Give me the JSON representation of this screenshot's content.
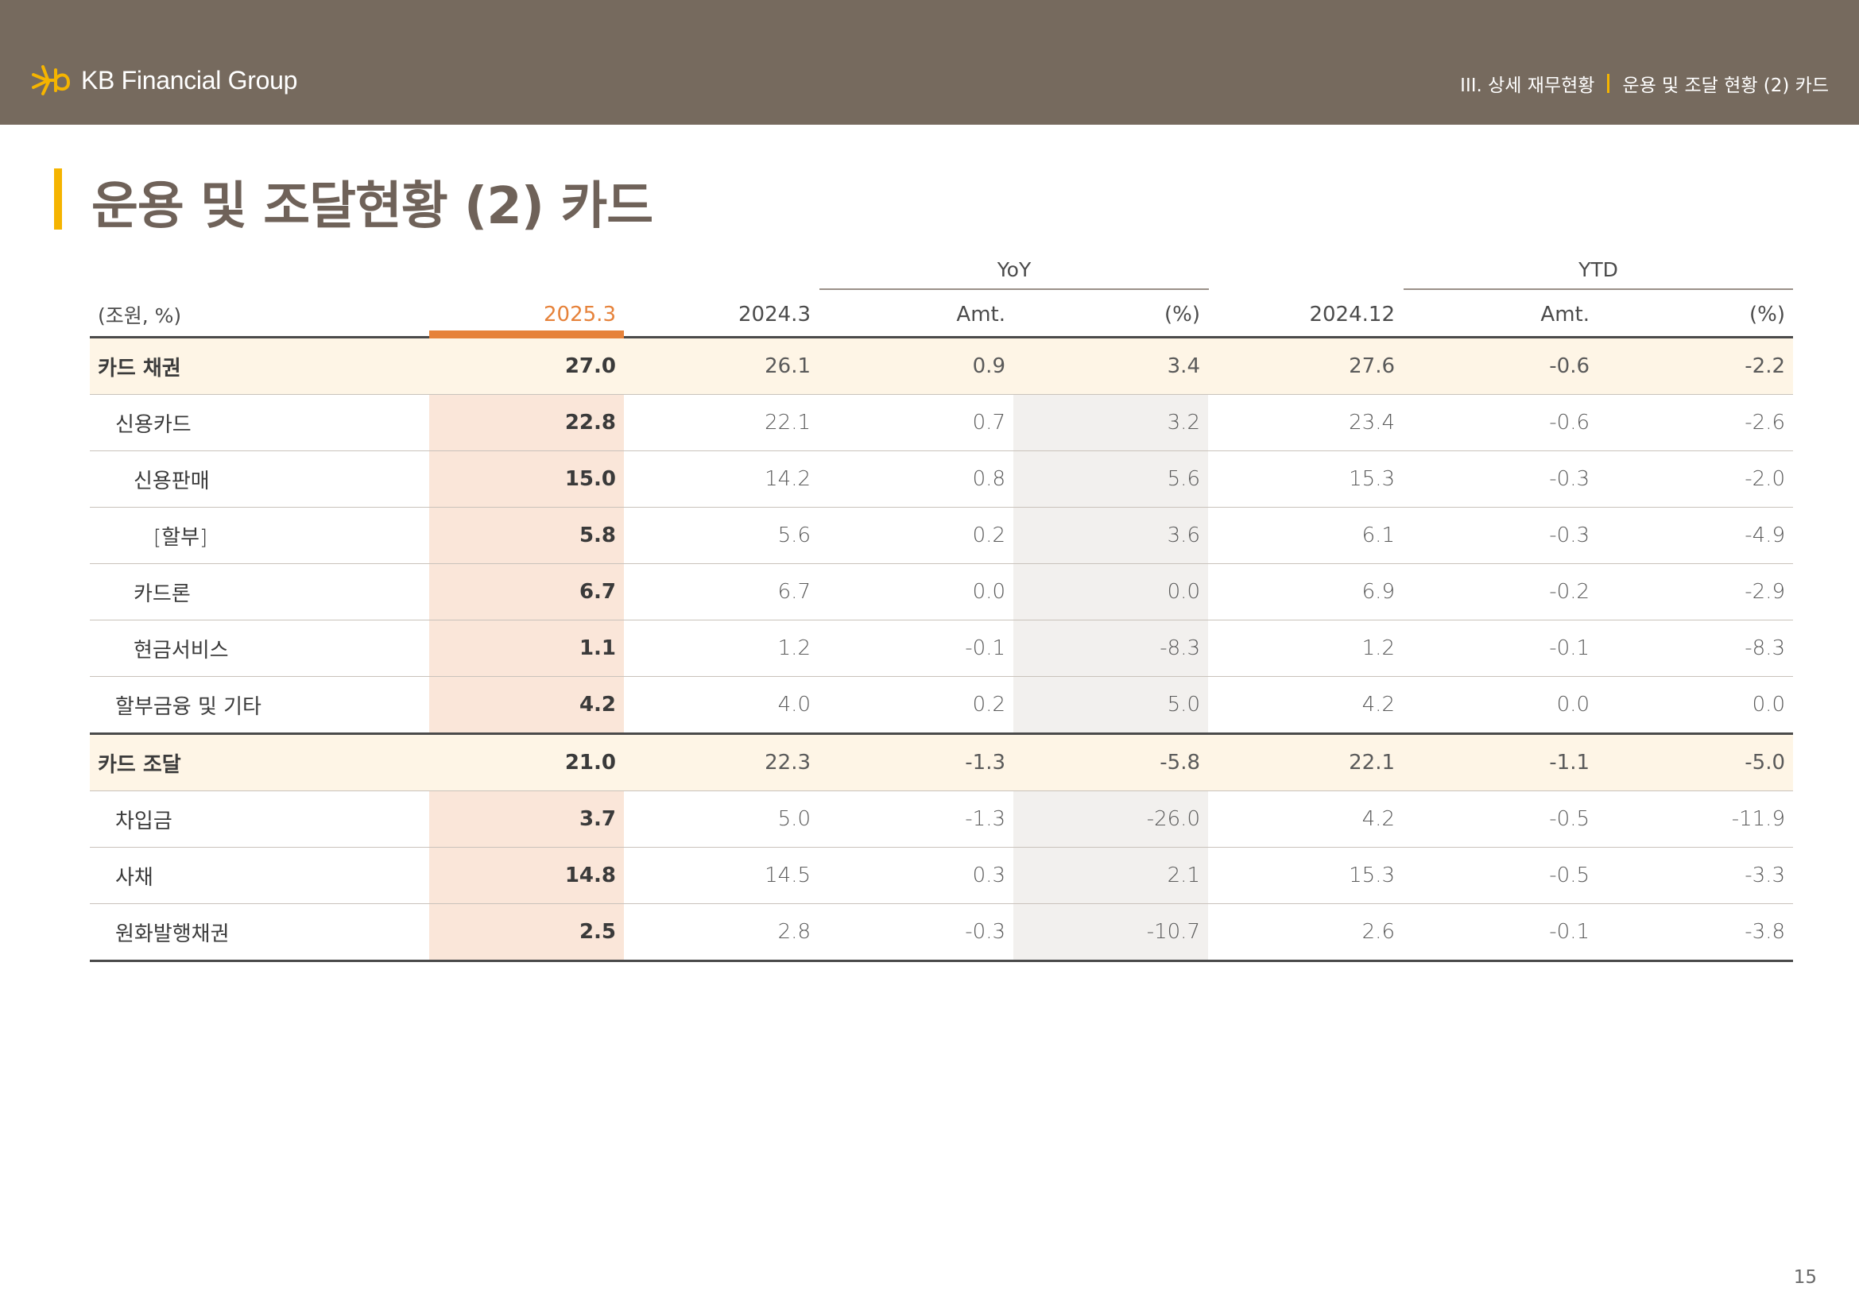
{
  "header": {
    "brand": "KB Financial Group",
    "breadcrumb_section": "III. 상세 재무현황",
    "breadcrumb_page": "운용 및 조달 현황 (2) 카드",
    "colors": {
      "bar": "#766a5e",
      "accent": "#f5b400",
      "highlight": "#e6823a"
    }
  },
  "page_title": "운용 및 조달현황 (2) 카드",
  "table": {
    "unit_label": "(조원, %)",
    "group_yoy": "YoY",
    "group_ytd": "YTD",
    "columns": [
      "2025.3",
      "2024.3",
      "Amt.",
      "(%)",
      "2024.12",
      "Amt.",
      "(%)"
    ],
    "rows": [
      {
        "label": "카드 채권",
        "values": [
          "27.0",
          "26.1",
          "0.9",
          "3.4",
          "27.6",
          "-0.6",
          "-2.2"
        ]
      },
      {
        "label": "신용카드",
        "values": [
          "22.8",
          "22.1",
          "0.7",
          "3.2",
          "23.4",
          "-0.6",
          "-2.6"
        ]
      },
      {
        "label": "신용판매",
        "values": [
          "15.0",
          "14.2",
          "0.8",
          "5.6",
          "15.3",
          "-0.3",
          "-2.0"
        ]
      },
      {
        "label": "[할부]",
        "values": [
          "5.8",
          "5.6",
          "0.2",
          "3.6",
          "6.1",
          "-0.3",
          "-4.9"
        ]
      },
      {
        "label": "카드론",
        "values": [
          "6.7",
          "6.7",
          "0.0",
          "0.0",
          "6.9",
          "-0.2",
          "-2.9"
        ]
      },
      {
        "label": "현금서비스",
        "values": [
          "1.1",
          "1.2",
          "-0.1",
          "-8.3",
          "1.2",
          "-0.1",
          "-8.3"
        ]
      },
      {
        "label": "할부금융 및 기타",
        "values": [
          "4.2",
          "4.0",
          "0.2",
          "5.0",
          "4.2",
          "0.0",
          "0.0"
        ]
      },
      {
        "label": "카드 조달",
        "values": [
          "21.0",
          "22.3",
          "-1.3",
          "-5.8",
          "22.1",
          "-1.1",
          "-5.0"
        ]
      },
      {
        "label": "차입금",
        "values": [
          "3.7",
          "5.0",
          "-1.3",
          "-26.0",
          "4.2",
          "-0.5",
          "-11.9"
        ]
      },
      {
        "label": "사채",
        "values": [
          "14.8",
          "14.5",
          "0.3",
          "2.1",
          "15.3",
          "-0.5",
          "-3.3"
        ]
      },
      {
        "label": "원화발행채권",
        "values": [
          "2.5",
          "2.8",
          "-0.3",
          "-10.7",
          "2.6",
          "-0.1",
          "-3.8"
        ]
      }
    ]
  },
  "page_number": "15"
}
